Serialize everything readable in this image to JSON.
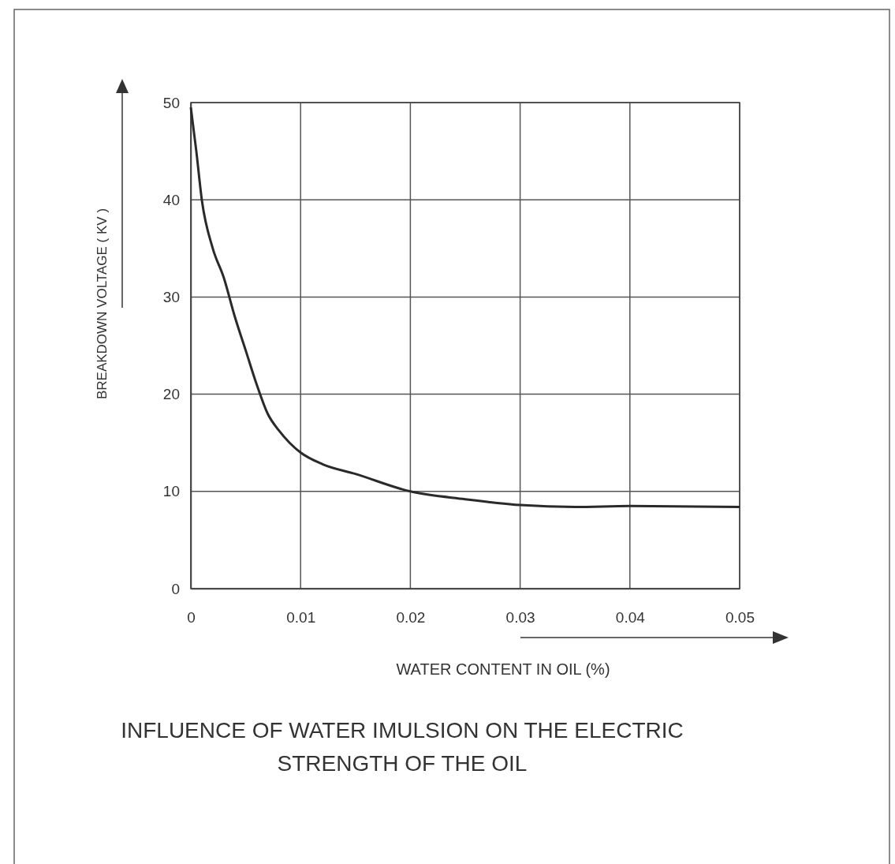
{
  "chart_data": {
    "type": "line",
    "title": "INFLUENCE OF WATER IMULSION ON THE ELECTRIC STRENGTH OF THE OIL",
    "xlabel": "WATER CONTENT IN OIL (%)",
    "ylabel": "BREAKDOWN VOLTAGE ( KV )",
    "x": [
      0,
      0.0005,
      0.001,
      0.002,
      0.003,
      0.004,
      0.005,
      0.006,
      0.007,
      0.008,
      0.009,
      0.01,
      0.012,
      0.015,
      0.02,
      0.025,
      0.03,
      0.035,
      0.04,
      0.05
    ],
    "series": [
      {
        "color": "#2a2a2a",
        "values": [
          49.5,
          45,
          40,
          35,
          32,
          28,
          24.5,
          21,
          18,
          16.3,
          15,
          14,
          12.8,
          11.8,
          10,
          9.2,
          8.6,
          8.4,
          8.5,
          8.4
        ]
      }
    ],
    "xlim": [
      0,
      0.05
    ],
    "xticks": [
      0,
      0.01,
      0.02,
      0.03,
      0.04,
      0.05
    ],
    "ylim": [
      0,
      50
    ],
    "yticks": [
      0,
      10,
      20,
      30,
      40,
      50
    ],
    "grid": true,
    "marker": "none",
    "line_style": "solid"
  }
}
